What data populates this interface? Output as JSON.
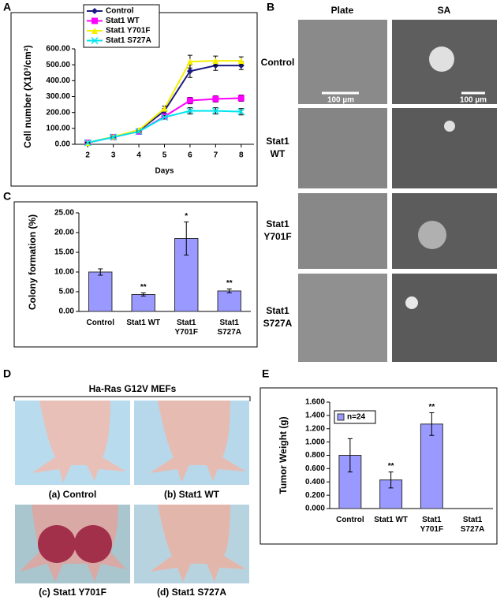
{
  "figure": {
    "panels": [
      "A",
      "B",
      "C",
      "D",
      "E"
    ],
    "b": {
      "columns": [
        "Plate",
        "SA"
      ],
      "rows": [
        [
          "Control"
        ],
        [
          "Stat1",
          "WT"
        ],
        [
          "Stat1",
          "Y701F"
        ],
        [
          "Stat1",
          "S727A"
        ]
      ],
      "scale_bar": "100 µm"
    },
    "d": {
      "title": "Ha-Ras G12V MEFs",
      "captions": [
        "(a) Control",
        "(b) Stat1 WT",
        "(c) Stat1 Y701F",
        "(d) Stat1 S727A"
      ]
    }
  },
  "chart_data": [
    {
      "type": "line",
      "x_label": "Days",
      "y_label": "Cell number (X10³/cm²)",
      "x": [
        2,
        3,
        4,
        5,
        6,
        7,
        8
      ],
      "xlim": [
        1.5,
        8.5
      ],
      "xticks": [
        2,
        3,
        4,
        5,
        6,
        7,
        8
      ],
      "ylim": [
        0,
        600
      ],
      "yticks": [
        {
          "value": 0,
          "label": "0.00"
        },
        {
          "value": 100,
          "label": "100.00"
        },
        {
          "value": 200,
          "label": "200.00"
        },
        {
          "value": 300,
          "label": "300.00"
        },
        {
          "value": 400,
          "label": "400.00"
        },
        {
          "value": 500,
          "label": "500.00"
        },
        {
          "value": 600,
          "label": "600.00"
        }
      ],
      "legend": "top-left",
      "series": [
        {
          "name": "Control",
          "color": "#1a1a80",
          "marker": "diamond",
          "values": [
            10,
            45,
            85,
            210,
            460,
            495,
            495
          ],
          "errors": [
            3,
            5,
            5,
            15,
            40,
            30,
            25
          ]
        },
        {
          "name": "Stat1 WT",
          "color": "#ff00ff",
          "marker": "square",
          "values": [
            10,
            45,
            80,
            175,
            275,
            285,
            290
          ],
          "errors": [
            3,
            5,
            5,
            10,
            20,
            20,
            20
          ]
        },
        {
          "name": "Stat1 Y701F",
          "color": "#f5f000",
          "marker": "triangle",
          "values": [
            10,
            48,
            90,
            225,
            520,
            525,
            525
          ],
          "errors": [
            3,
            5,
            5,
            15,
            40,
            30,
            25
          ]
        },
        {
          "name": "Stat1 S727A",
          "color": "#00e5ee",
          "marker": "cross",
          "values": [
            10,
            45,
            80,
            170,
            210,
            210,
            205
          ],
          "errors": [
            3,
            5,
            5,
            10,
            20,
            20,
            20
          ]
        }
      ]
    },
    {
      "type": "bar",
      "y_label": "Colony formation (%)",
      "color": "#9999ff",
      "categories": [
        [
          "Control"
        ],
        [
          "Stat1 WT"
        ],
        [
          "Stat1",
          "Y701F"
        ],
        [
          "Stat1",
          "S727A"
        ]
      ],
      "values": [
        10.0,
        4.3,
        18.5,
        5.2
      ],
      "errors": [
        0.8,
        0.4,
        4.2,
        0.5
      ],
      "annotations": [
        null,
        "**",
        "*",
        "**"
      ],
      "ylim": [
        0,
        25
      ],
      "yticks": [
        {
          "value": 0,
          "label": "0.00"
        },
        {
          "value": 5,
          "label": "5.00"
        },
        {
          "value": 10,
          "label": "10.00"
        },
        {
          "value": 15,
          "label": "15.00"
        },
        {
          "value": 20,
          "label": "20.00"
        },
        {
          "value": 25,
          "label": "25.00"
        }
      ]
    },
    {
      "type": "bar",
      "y_label": "Tumor Weight (g)",
      "color": "#9999ff",
      "legend_label": "n=24",
      "legend": "top-left",
      "categories": [
        [
          "Control"
        ],
        [
          "Stat1 WT"
        ],
        [
          "Stat1",
          "Y701F"
        ],
        [
          "Stat1",
          "S727A"
        ]
      ],
      "values": [
        0.8,
        0.43,
        1.27,
        null
      ],
      "errors": [
        0.25,
        0.12,
        0.17,
        null
      ],
      "annotations": [
        null,
        "**",
        "**",
        null
      ],
      "ylim": [
        0,
        1.6
      ],
      "yticks": [
        {
          "value": 0,
          "label": "0.000"
        },
        {
          "value": 0.2,
          "label": "0.200"
        },
        {
          "value": 0.4,
          "label": "0.400"
        },
        {
          "value": 0.6,
          "label": "0.600"
        },
        {
          "value": 0.8,
          "label": "0.800"
        },
        {
          "value": 1.0,
          "label": "1.000"
        },
        {
          "value": 1.2,
          "label": "1.200"
        },
        {
          "value": 1.4,
          "label": "1.400"
        },
        {
          "value": 1.6,
          "label": "1.600"
        }
      ]
    }
  ]
}
